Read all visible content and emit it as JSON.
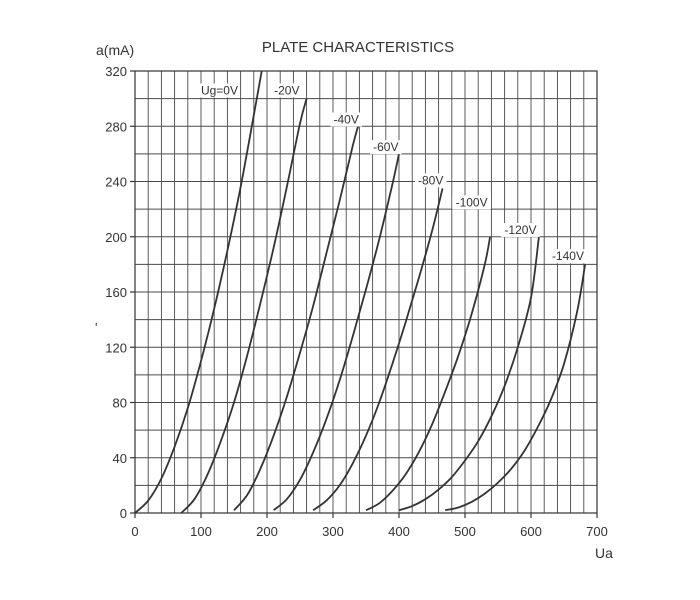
{
  "chart_data": {
    "type": "line",
    "title": "PLATE CHARACTERISTICS",
    "xlabel": "Ua",
    "ylabel": "a(mA)",
    "xlim": [
      0,
      700
    ],
    "ylim": [
      0,
      320
    ],
    "grid": true,
    "grid_minor_x_step": 20,
    "grid_minor_y_step": 20,
    "xticks": [
      "0",
      "100",
      "200",
      "300",
      "400",
      "500",
      "600",
      "700"
    ],
    "yticks": [
      "0",
      "40",
      "80",
      "120",
      "160",
      "200",
      "240",
      "280",
      "320"
    ],
    "xtick_values": [
      0,
      100,
      200,
      300,
      400,
      500,
      600,
      700
    ],
    "ytick_values": [
      0,
      40,
      80,
      120,
      160,
      200,
      240,
      280,
      320
    ],
    "series": [
      {
        "name": "Ug=0V",
        "x": [
          0,
          20,
          40,
          60,
          80,
          100,
          120,
          140,
          160,
          180,
          192
        ],
        "y": [
          0,
          9,
          25,
          48,
          76,
          110,
          148,
          190,
          236,
          288,
          320
        ]
      },
      {
        "name": "-20V",
        "x": [
          70,
          90,
          110,
          130,
          150,
          170,
          190,
          210,
          230,
          250,
          260
        ],
        "y": [
          0,
          10,
          28,
          52,
          80,
          114,
          152,
          192,
          236,
          282,
          300
        ]
      },
      {
        "name": "-40V",
        "x": [
          150,
          170,
          190,
          210,
          230,
          250,
          270,
          290,
          310,
          330,
          338
        ],
        "y": [
          2,
          13,
          32,
          56,
          84,
          116,
          150,
          188,
          226,
          266,
          280
        ]
      },
      {
        "name": "-60V",
        "x": [
          210,
          230,
          250,
          270,
          290,
          310,
          330,
          350,
          370,
          390,
          400
        ],
        "y": [
          2,
          10,
          24,
          44,
          68,
          96,
          128,
          162,
          198,
          238,
          260
        ]
      },
      {
        "name": "-80V",
        "x": [
          270,
          290,
          310,
          330,
          350,
          370,
          390,
          410,
          430,
          450,
          466
        ],
        "y": [
          2,
          9,
          20,
          36,
          56,
          80,
          108,
          138,
          170,
          204,
          235
        ]
      },
      {
        "name": "-100V",
        "x": [
          350,
          370,
          390,
          410,
          430,
          450,
          470,
          490,
          510,
          530,
          538
        ],
        "y": [
          2,
          7,
          16,
          28,
          44,
          64,
          88,
          114,
          144,
          180,
          200
        ]
      },
      {
        "name": "-120V",
        "x": [
          400,
          420,
          440,
          460,
          480,
          500,
          520,
          540,
          560,
          580,
          600,
          612
        ],
        "y": [
          2,
          5,
          10,
          17,
          26,
          38,
          52,
          70,
          92,
          120,
          156,
          200
        ]
      },
      {
        "name": "-140V",
        "x": [
          470,
          490,
          510,
          530,
          550,
          570,
          590,
          610,
          630,
          650,
          670,
          682
        ],
        "y": [
          2,
          4,
          8,
          14,
          22,
          32,
          45,
          62,
          82,
          108,
          146,
          180
        ]
      }
    ],
    "curve_labels": [
      {
        "text": "Ug=0V",
        "x": 128,
        "y": 303
      },
      {
        "text": "-20V",
        "x": 230,
        "y": 303
      },
      {
        "text": "-40V",
        "x": 320,
        "y": 282
      },
      {
        "text": "-60V",
        "x": 380,
        "y": 262
      },
      {
        "text": "-80V",
        "x": 448,
        "y": 238
      },
      {
        "text": "-100V",
        "x": 510,
        "y": 222
      },
      {
        "text": "-120V",
        "x": 584,
        "y": 202
      },
      {
        "text": "-140V",
        "x": 656,
        "y": 183
      }
    ],
    "stray_mark": "'"
  }
}
